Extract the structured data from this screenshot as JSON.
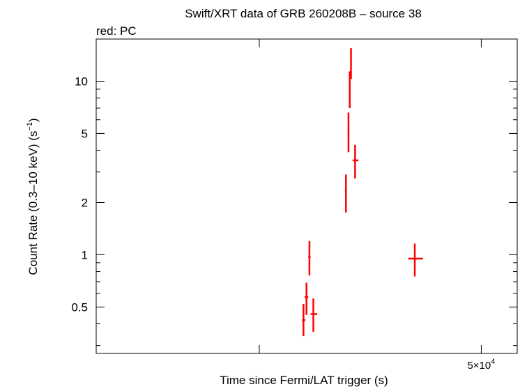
{
  "chart_data": {
    "type": "scatter",
    "title": "Swift/XRT data of GRB 260208B – source 38",
    "subtitle": "red: PC",
    "xlabel": "Time since Fermi/LAT trigger (s)",
    "ylabel": "Count Rate (0.3–10 keV) (s",
    "ylabel_sup": "−1",
    "ylabel_tail": ")",
    "x_scale": "log",
    "y_scale": "log",
    "xlim": [
      10200,
      58000
    ],
    "ylim": [
      0.27,
      17.5
    ],
    "x_ticks_major": [
      {
        "value": 50000,
        "label_base": "5×10",
        "label_exp": "4"
      }
    ],
    "x_ticks_unlabeled": [
      20000
    ],
    "y_ticks_major": [
      {
        "value": 0.5,
        "label": "0.5"
      },
      {
        "value": 1,
        "label": "1"
      },
      {
        "value": 2,
        "label": "2"
      },
      {
        "value": 5,
        "label": "5"
      },
      {
        "value": 10,
        "label": "10"
      }
    ],
    "y_ticks_minor": [
      0.3,
      0.4,
      0.6,
      0.7,
      0.8,
      0.9,
      3,
      4,
      6,
      7,
      8,
      9
    ],
    "grid": false,
    "legend": "none",
    "series": [
      {
        "name": "PC",
        "color": "#ff0000",
        "points": [
          {
            "x": 24000,
            "x_lo": 23850,
            "x_hi": 24180,
            "y": 0.42,
            "y_lo": 0.34,
            "y_hi": 0.52
          },
          {
            "x": 24300,
            "x_lo": 24120,
            "x_hi": 24480,
            "y": 0.57,
            "y_lo": 0.45,
            "y_hi": 0.69
          },
          {
            "x": 24600,
            "x_lo": 24480,
            "x_hi": 24720,
            "y": 0.97,
            "y_lo": 0.76,
            "y_hi": 1.2
          },
          {
            "x": 25000,
            "x_lo": 24720,
            "x_hi": 25400,
            "y": 0.455,
            "y_lo": 0.36,
            "y_hi": 0.56
          },
          {
            "x": 28600,
            "x_lo": 28480,
            "x_hi": 28700,
            "y": 2.35,
            "y_lo": 1.75,
            "y_hi": 2.9
          },
          {
            "x": 28900,
            "x_lo": 28800,
            "x_hi": 29000,
            "y": 5.2,
            "y_lo": 3.9,
            "y_hi": 6.6
          },
          {
            "x": 29050,
            "x_lo": 28980,
            "x_hi": 29130,
            "y": 9.0,
            "y_lo": 7.0,
            "y_hi": 11.4
          },
          {
            "x": 29200,
            "x_lo": 29130,
            "x_hi": 29280,
            "y": 12.5,
            "y_lo": 10.3,
            "y_hi": 15.5
          },
          {
            "x": 29700,
            "x_lo": 29400,
            "x_hi": 30100,
            "y": 3.5,
            "y_lo": 2.75,
            "y_hi": 4.3
          },
          {
            "x": 38000,
            "x_lo": 37000,
            "x_hi": 39300,
            "y": 0.95,
            "y_lo": 0.75,
            "y_hi": 1.16
          }
        ]
      }
    ]
  }
}
